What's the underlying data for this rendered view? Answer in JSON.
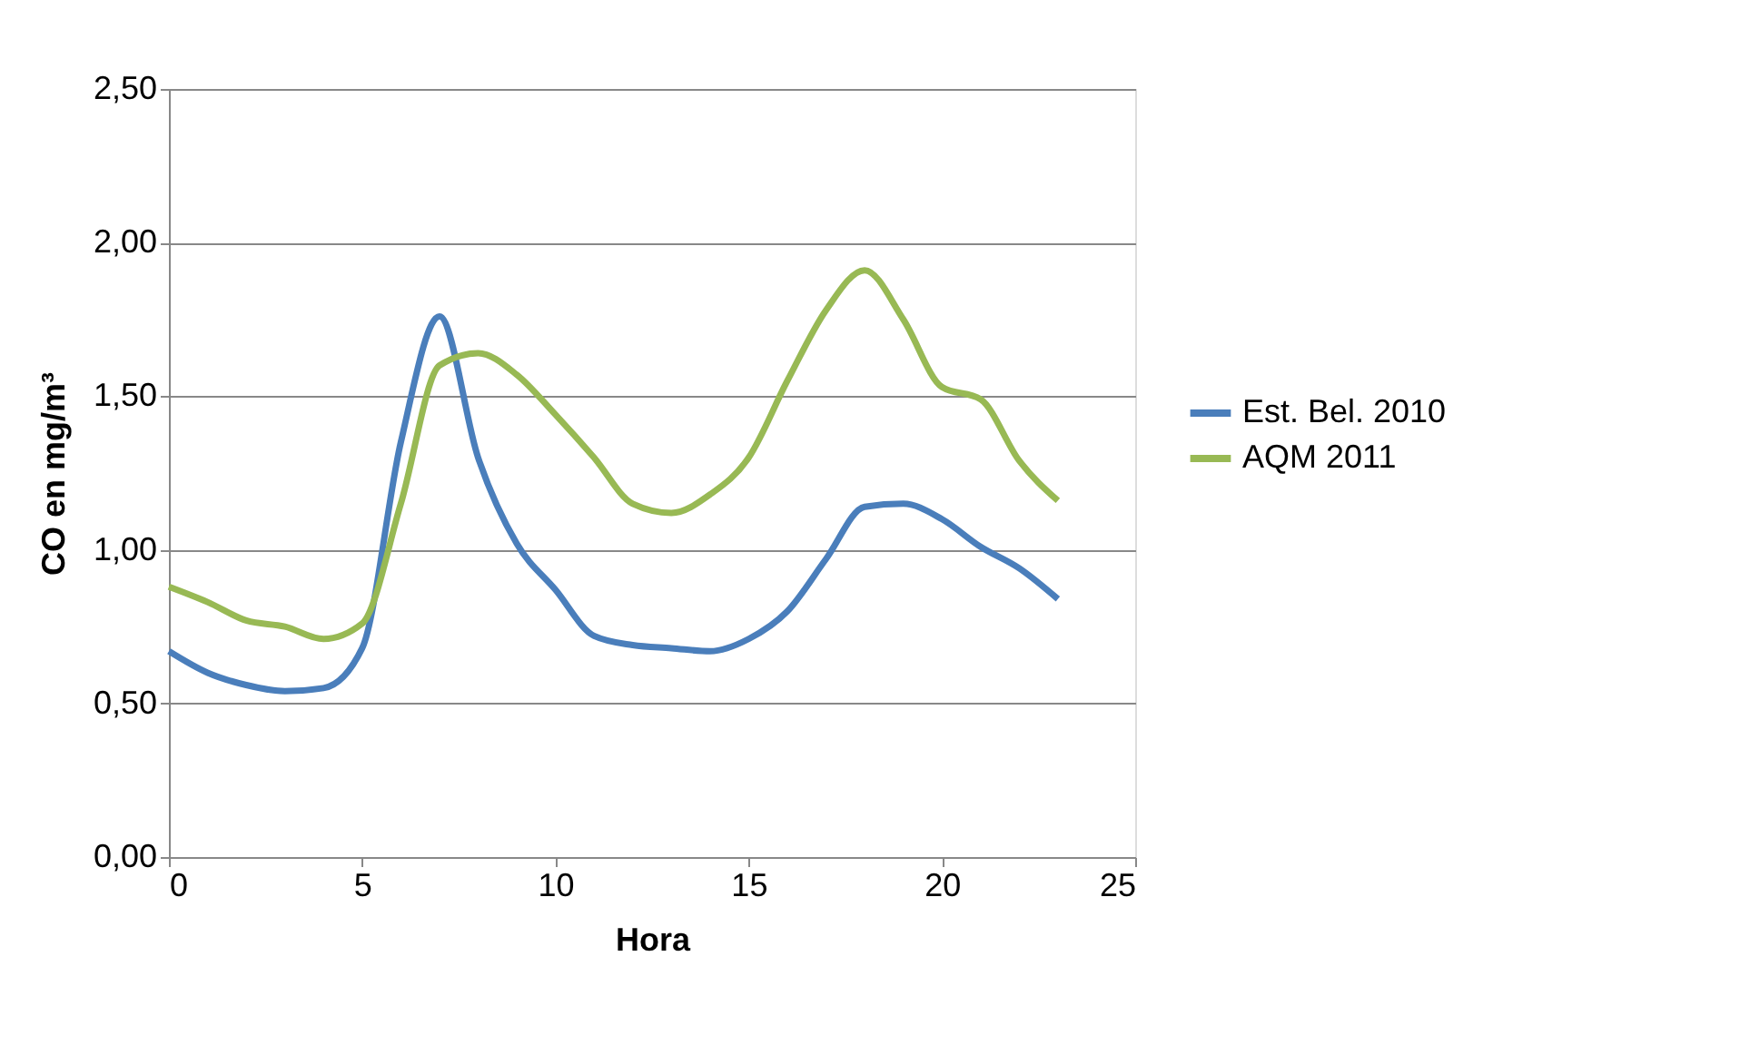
{
  "chart_data": {
    "type": "line",
    "xlabel": "Hora",
    "ylabel": "CO en mg/m³",
    "x": [
      0,
      1,
      2,
      3,
      4,
      5,
      6,
      7,
      8,
      9,
      10,
      11,
      12,
      13,
      14,
      15,
      16,
      17,
      18,
      19,
      20,
      21,
      22,
      23
    ],
    "series": [
      {
        "name": "Est. Bel. 2010",
        "color": "#4a7ebb",
        "values": [
          0.67,
          0.6,
          0.56,
          0.54,
          0.55,
          0.68,
          1.35,
          1.76,
          1.3,
          1.02,
          0.87,
          0.72,
          0.69,
          0.68,
          0.67,
          0.71,
          0.8,
          0.97,
          1.14,
          1.15,
          1.1,
          1.01,
          0.94,
          0.84
        ]
      },
      {
        "name": "AQM 2011",
        "color": "#98b954",
        "values": [
          0.88,
          0.83,
          0.77,
          0.75,
          0.71,
          0.76,
          1.15,
          1.6,
          1.64,
          1.57,
          1.44,
          1.3,
          1.15,
          1.12,
          1.18,
          1.3,
          1.55,
          1.78,
          1.91,
          1.75,
          1.53,
          1.49,
          1.29,
          1.16
        ]
      }
    ],
    "xlim": [
      0,
      25
    ],
    "xticks": [
      0,
      5,
      10,
      15,
      20,
      25
    ],
    "ylim": [
      0,
      2.5
    ],
    "yticks": [
      {
        "value": 0,
        "label": "0,00"
      },
      {
        "value": 0.5,
        "label": "0,50"
      },
      {
        "value": 1,
        "label": "1,00"
      },
      {
        "value": 1.5,
        "label": "1,50"
      },
      {
        "value": 2,
        "label": "2,00"
      },
      {
        "value": 2.5,
        "label": "2,50"
      }
    ],
    "grid": "y",
    "legend": "right",
    "marker": "none",
    "line_style": "solid"
  }
}
